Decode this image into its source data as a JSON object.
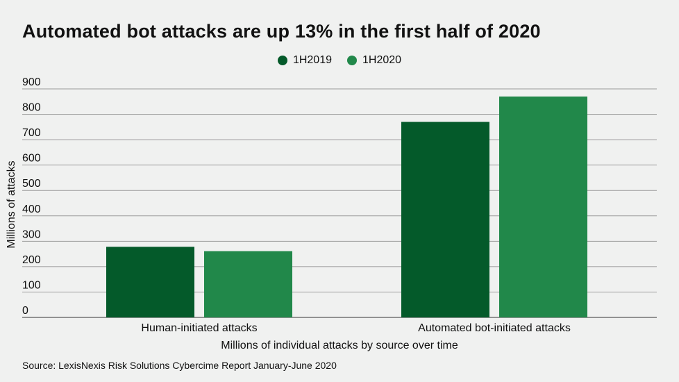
{
  "title": "Automated bot attacks are up 13% in the first half of 2020",
  "source": "Source: LexisNexis Risk Solutions Cybercime Report January-June 2020",
  "chart_data": {
    "type": "bar",
    "title": "Automated bot attacks are up 13% in the first half of 2020",
    "categories": [
      "Human-initiated attacks",
      "Automated bot-initiated attacks"
    ],
    "series": [
      {
        "name": "1H2019",
        "color": "#045a2a",
        "values": [
          278,
          770
        ]
      },
      {
        "name": "1H2020",
        "color": "#21884a",
        "values": [
          261,
          870
        ]
      }
    ],
    "xlabel": "Millions of individual attacks by source over time",
    "ylabel": "Millions of attacks",
    "ylim": [
      0,
      900
    ],
    "yticks": [
      0,
      100,
      200,
      300,
      400,
      500,
      600,
      700,
      800,
      900
    ],
    "grid": true,
    "legend_position": "top-center"
  }
}
